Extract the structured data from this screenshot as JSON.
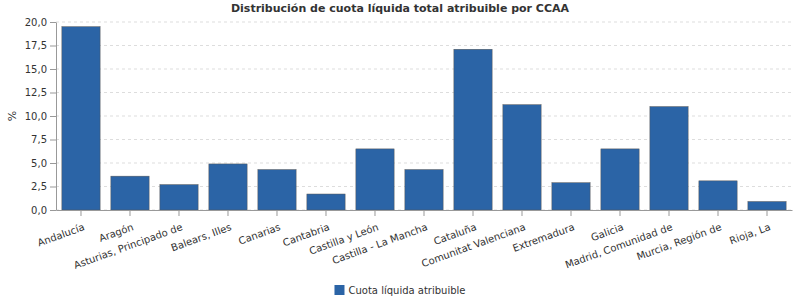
{
  "chart_data": {
    "type": "bar",
    "title": "Distribución de cuota líquida total atribuible por CCAA",
    "y_label": "%",
    "categories": [
      "Andalucía",
      "Aragón",
      "Asturias, Principado de",
      "Balears, Illes",
      "Canarias",
      "Cantabria",
      "Castilla y León",
      "Castilla - La Mancha",
      "Cataluña",
      "Comunitat Valenciana",
      "Extremadura",
      "Galicia",
      "Madrid, Comunidad de",
      "Murcia, Región de",
      "Rioja, La"
    ],
    "series": [
      {
        "name": "Cuota líquida atribuible",
        "color": "#2b64a6",
        "values": [
          19.5,
          3.6,
          2.7,
          4.9,
          4.3,
          1.7,
          6.5,
          4.3,
          17.1,
          11.2,
          2.9,
          6.5,
          11.0,
          3.1,
          0.9
        ]
      }
    ],
    "ylim": [
      0,
      20
    ],
    "yticks": [
      {
        "value": 0,
        "label": "0,0"
      },
      {
        "value": 2.5,
        "label": "2,5"
      },
      {
        "value": 5,
        "label": "5,0"
      },
      {
        "value": 7.5,
        "label": "7,5"
      },
      {
        "value": 10,
        "label": "10,0"
      },
      {
        "value": 12.5,
        "label": "12,5"
      },
      {
        "value": 15,
        "label": "15,0"
      },
      {
        "value": 17.5,
        "label": "17,5"
      },
      {
        "value": 20,
        "label": "20,0"
      }
    ],
    "grid": true,
    "legend": "bottom"
  }
}
